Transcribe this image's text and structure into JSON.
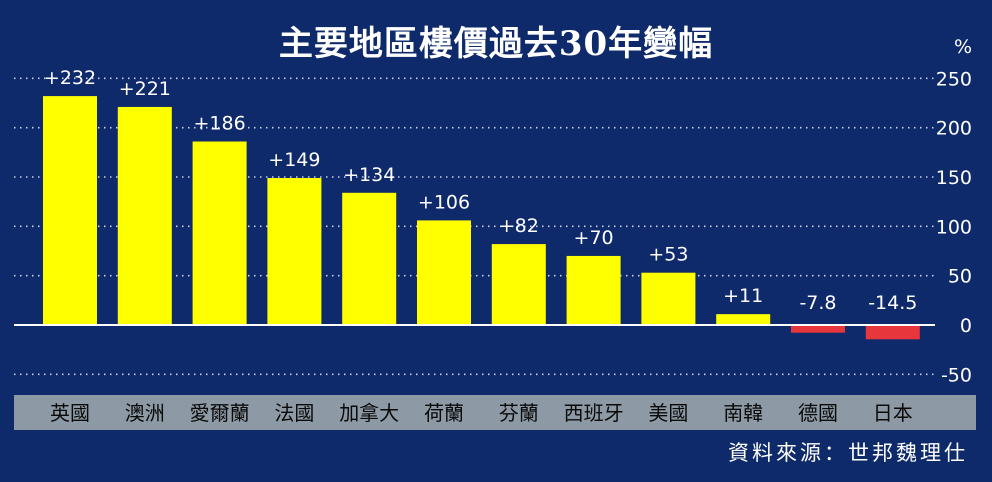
{
  "chart_data": {
    "type": "bar",
    "title": "主要地區樓價過去30年變幅",
    "ylabel": "%",
    "ylim": [
      -50,
      250
    ],
    "yticks": [
      250,
      200,
      150,
      100,
      50,
      0,
      -50
    ],
    "grid": true,
    "categories": [
      "英國",
      "澳洲",
      "愛爾蘭",
      "法國",
      "加拿大",
      "荷蘭",
      "芬蘭",
      "西班牙",
      "美國",
      "南韓",
      "德國",
      "日本"
    ],
    "values": [
      232,
      221,
      186,
      149,
      134,
      106,
      82,
      70,
      53,
      11,
      -7.8,
      -14.5
    ],
    "value_labels": [
      "+232",
      "+221",
      "+186",
      "+149",
      "+134",
      "+106",
      "+82",
      "+70",
      "+53",
      "+11",
      "-7.8",
      "-14.5"
    ],
    "colors": {
      "background": "#0e2a6b",
      "positive": "#ffff00",
      "negative": "#e8363d",
      "category_band": "#8d9aa5",
      "grid": "#c9d2e6",
      "zero_line": "#ffffff"
    }
  },
  "source": "資料來源：世邦魏理仕"
}
